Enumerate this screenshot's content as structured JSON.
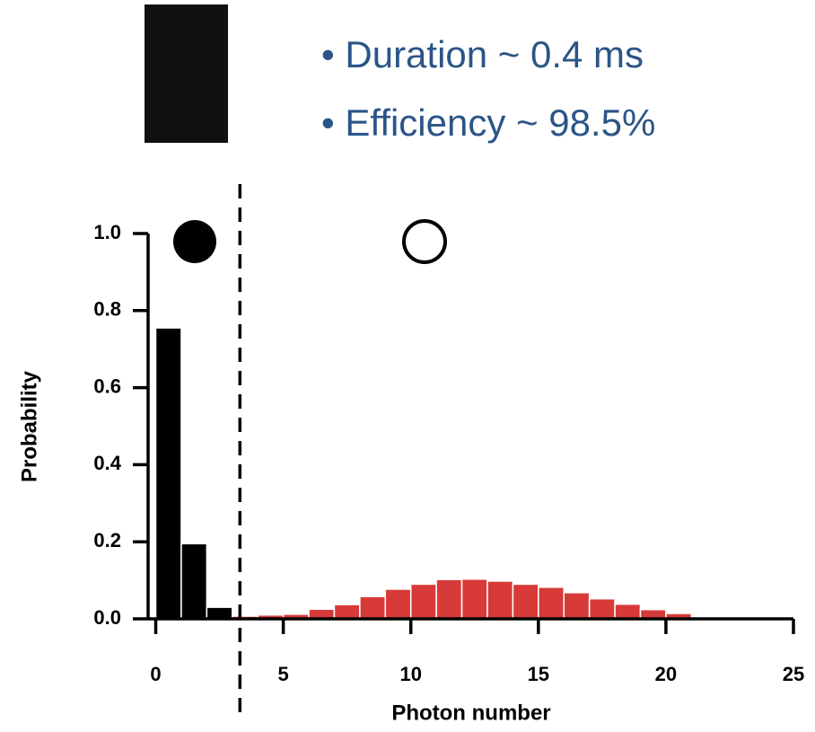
{
  "chart_data": {
    "type": "histogram",
    "annotations": [
      "• Duration ~ 0.4 ms",
      "• Efficiency ~ 98.5%"
    ],
    "x_label": "Photon number",
    "y_label": "Probability",
    "series": [
      {
        "color": "#000000",
        "bins": [
          0,
          1,
          2,
          3
        ],
        "values": [
          0.755,
          0.195,
          0.03
        ]
      },
      {
        "color": "#d83a3a",
        "bins": [
          3,
          4,
          5,
          6,
          7,
          8,
          9,
          10,
          11,
          12,
          13,
          14,
          15,
          16,
          17,
          18,
          19,
          20,
          21
        ],
        "values": [
          0.007,
          0.01,
          0.012,
          0.025,
          0.037,
          0.058,
          0.077,
          0.09,
          0.102,
          0.103,
          0.098,
          0.09,
          0.082,
          0.068,
          0.052,
          0.038,
          0.024,
          0.014
        ]
      }
    ],
    "threshold": 3.3,
    "xlim": [
      -0.3,
      25
    ],
    "ylim": [
      0,
      1.0
    ],
    "xticks": [
      0,
      5,
      10,
      15,
      20,
      25
    ],
    "yticks": [
      {
        "value": 0,
        "label": "0.0"
      },
      0.2,
      0.4,
      0.6,
      0.8,
      {
        "value": 1,
        "label": "1.0"
      }
    ]
  }
}
